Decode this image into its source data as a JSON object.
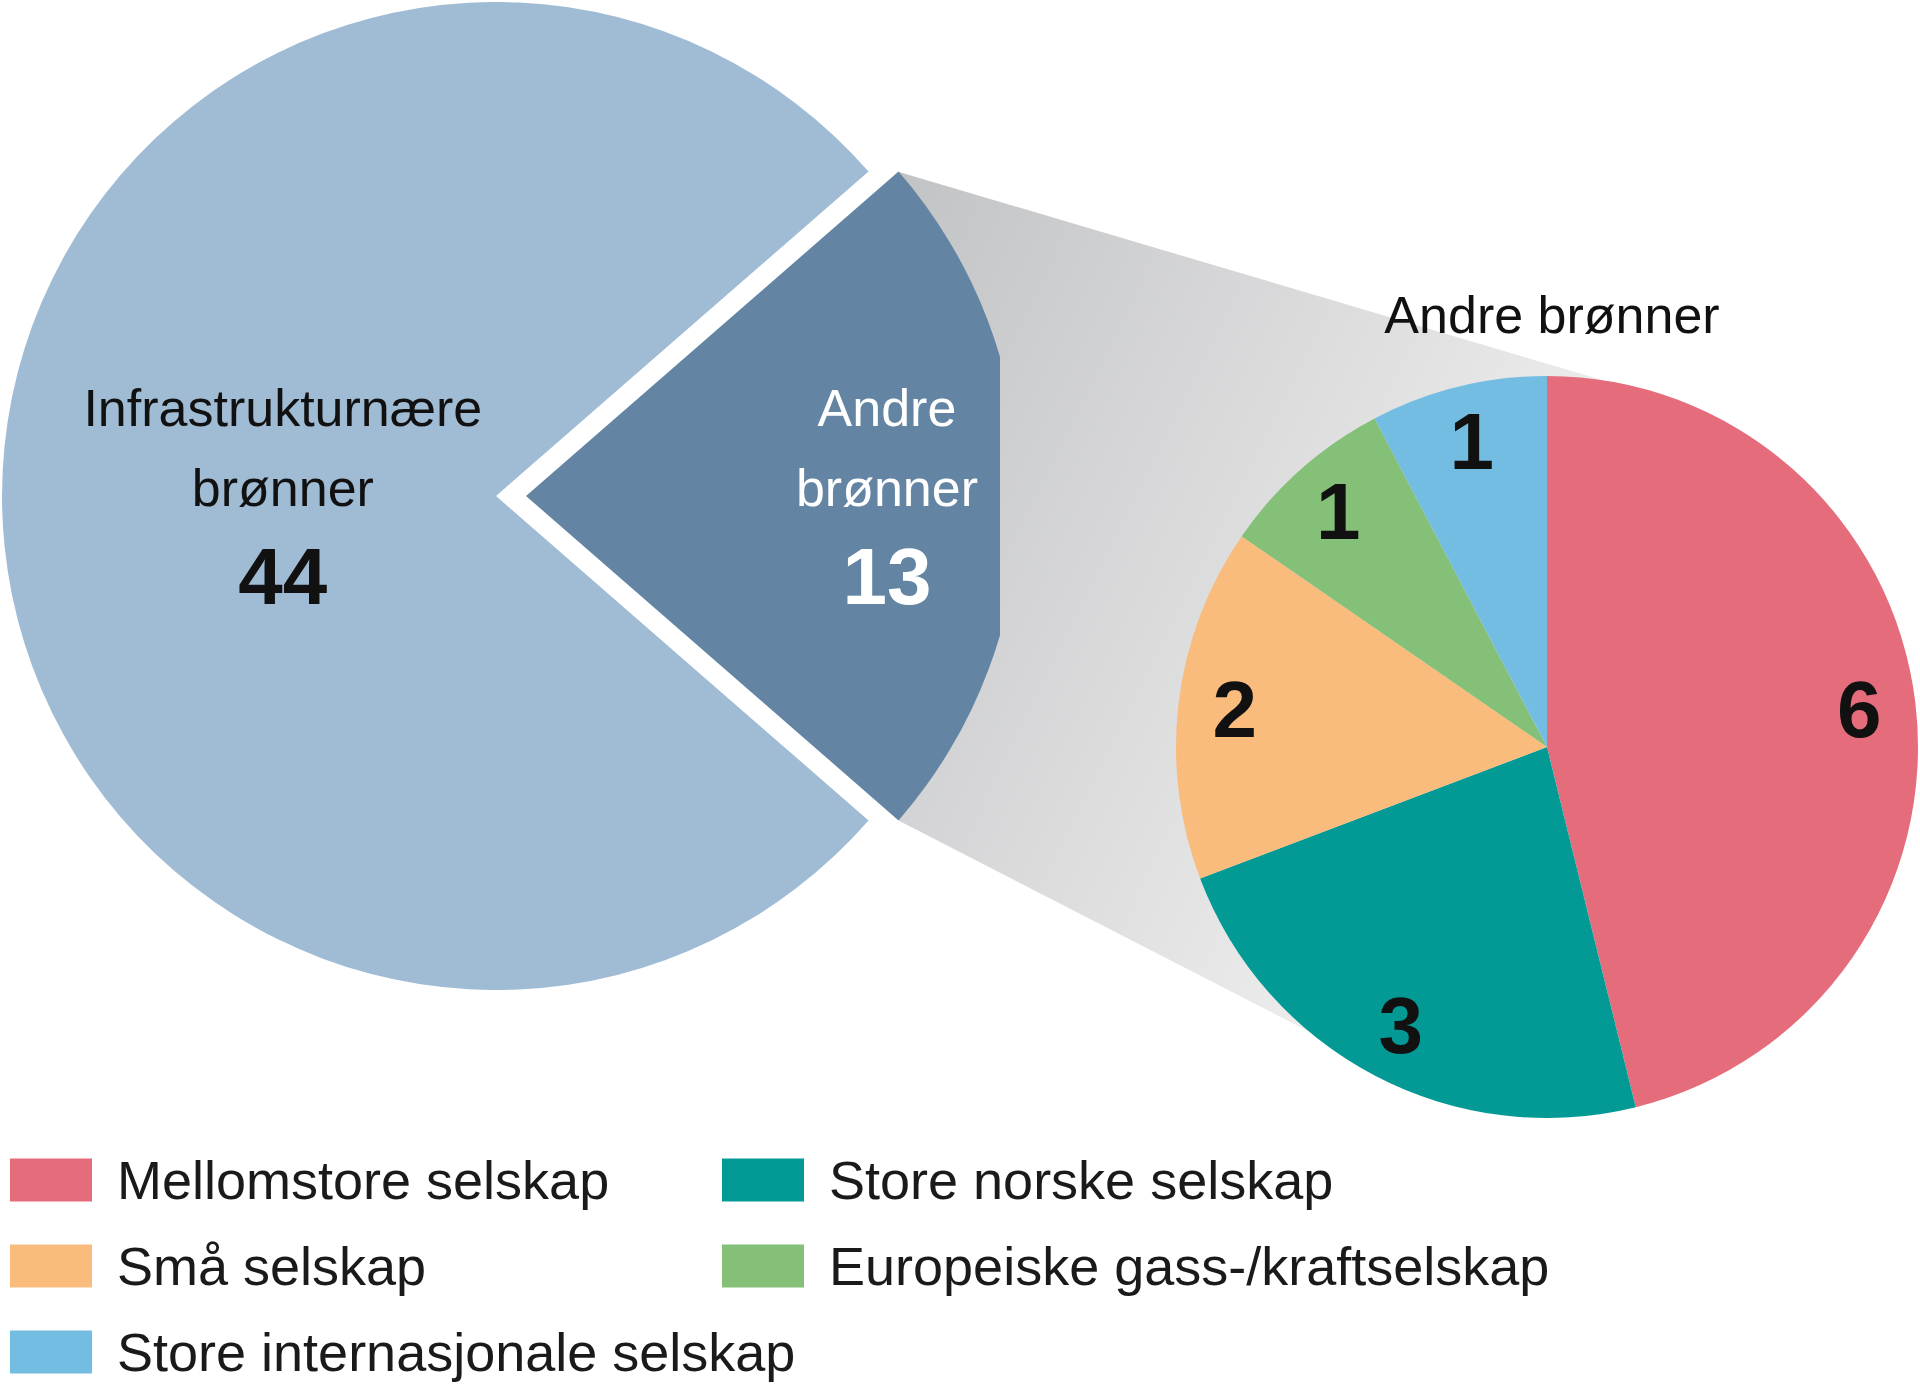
{
  "chart_data": [
    {
      "type": "pie",
      "categories": [
        "Infrastrukturnære brønner",
        "Andre brønner"
      ],
      "values": [
        44,
        13
      ],
      "colors": [
        "#a0bcd5",
        "#6385a3"
      ],
      "data_labels": true
    },
    {
      "type": "pie",
      "title": "Andre brønner",
      "categories": [
        "Mellomstore selskap",
        "Store norske selskap",
        "Små selskap",
        "Europeiske gass-/kraftselskap",
        "Store internasjonale selskap"
      ],
      "values": [
        6,
        3,
        2,
        1,
        1
      ],
      "colors": [
        "#e56d7b",
        "#039a96",
        "#f9bc7c",
        "#84c077",
        "#74bde2"
      ],
      "data_labels": true,
      "legend": "bottom left"
    }
  ]
}
